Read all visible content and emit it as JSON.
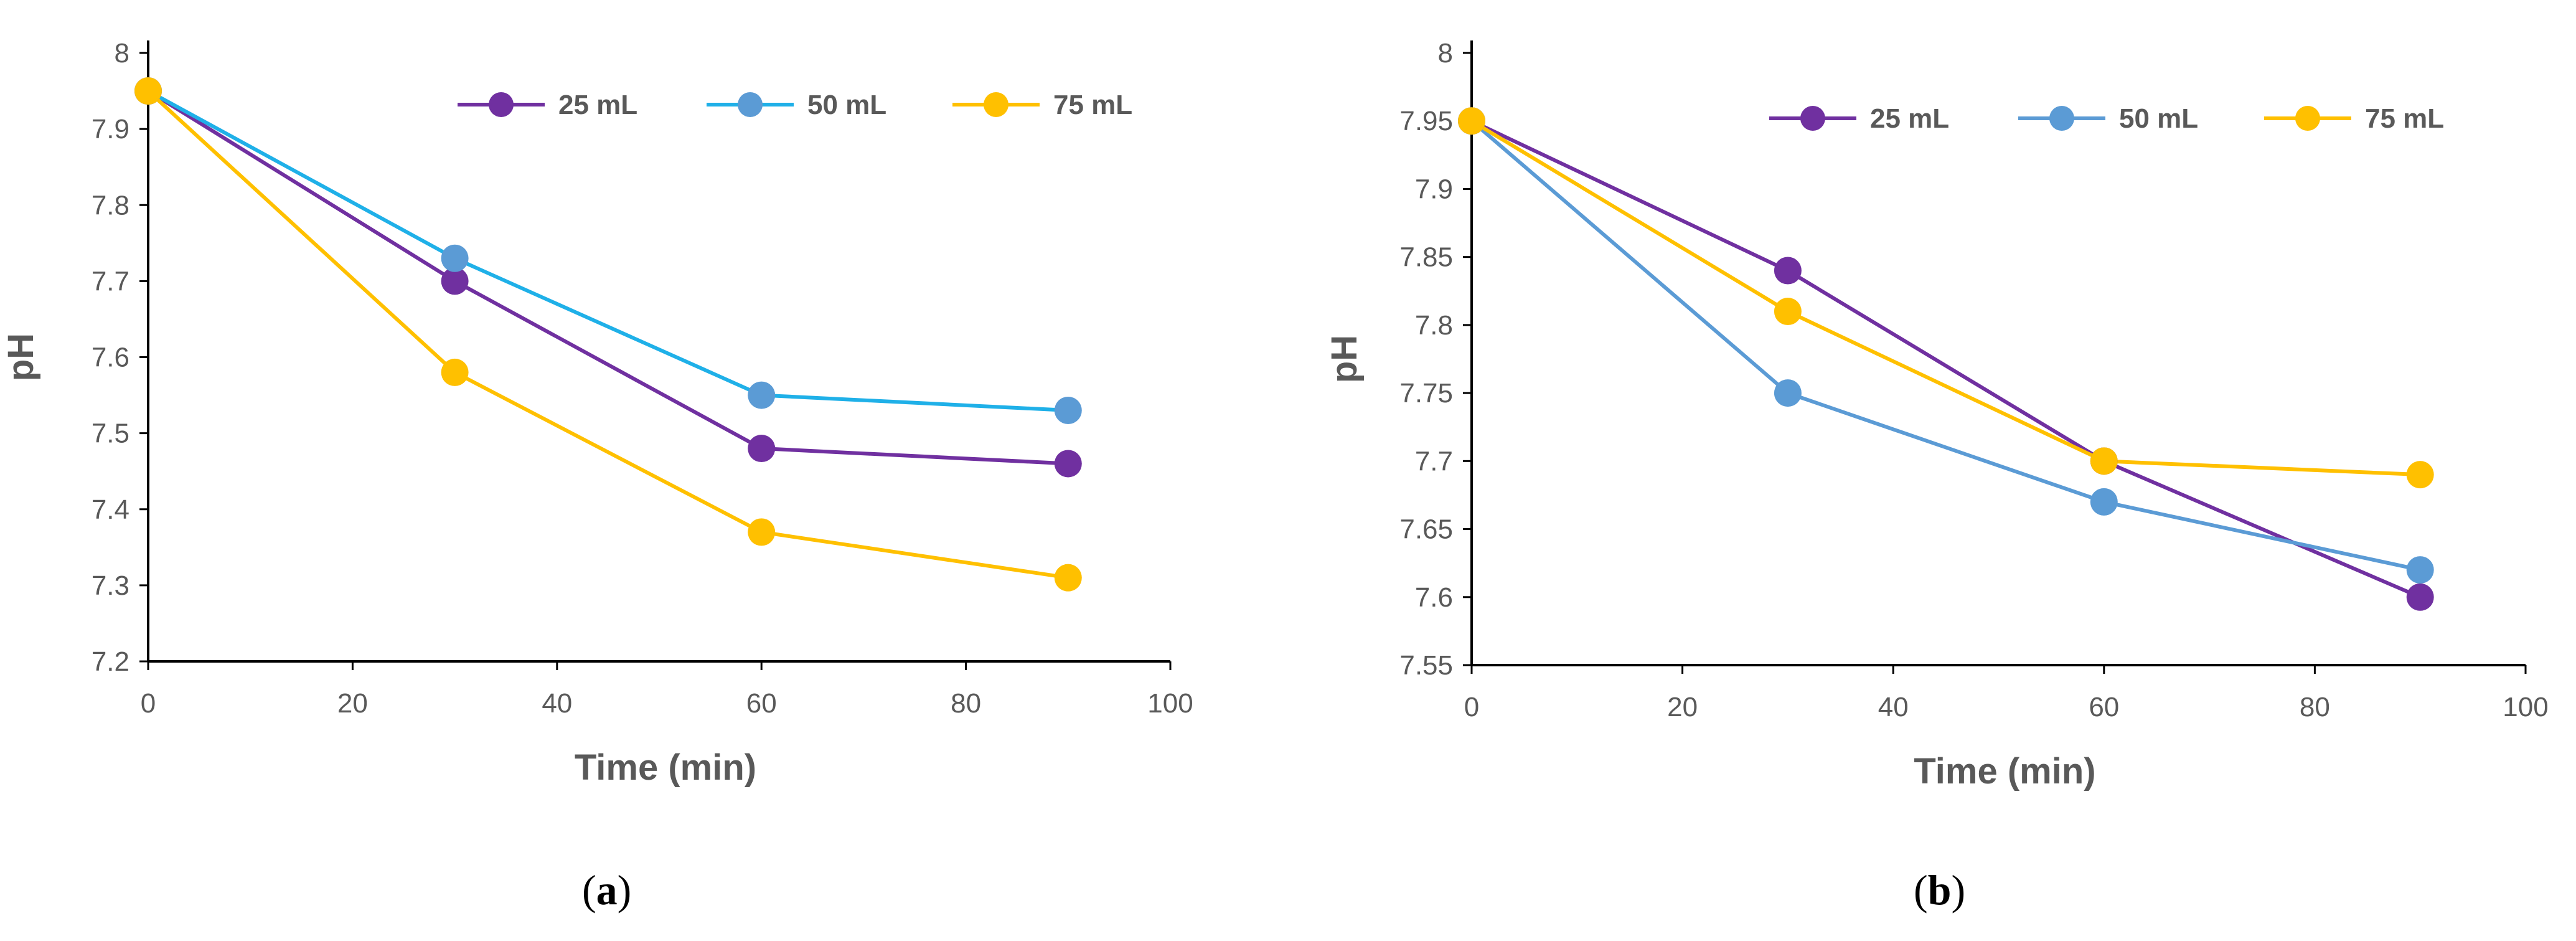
{
  "chart_data": [
    {
      "id": "a",
      "type": "line",
      "caption_open": "(",
      "caption_letter": "a",
      "caption_close": ")",
      "xlabel": "Time (min)",
      "ylabel": "pH",
      "xlim": [
        0,
        100
      ],
      "ylim": [
        7.2,
        8
      ],
      "xticks": [
        "0",
        "20",
        "40",
        "60",
        "80",
        "100"
      ],
      "yticks": [
        "7.2",
        "7.3",
        "7.4",
        "7.5",
        "7.6",
        "7.7",
        "7.8",
        "7.9",
        "8"
      ],
      "legend_position": "top-right",
      "x": [
        0,
        30,
        60,
        90
      ],
      "series": [
        {
          "name": "25 mL",
          "values": [
            7.95,
            7.7,
            7.48,
            7.46
          ],
          "line_color": "#7030A0",
          "marker_color": "#7030A0"
        },
        {
          "name": "50 mL",
          "values": [
            7.95,
            7.73,
            7.55,
            7.53
          ],
          "line_color": "#1FB0E8",
          "marker_color": "#5B9BD5"
        },
        {
          "name": "75 mL",
          "values": [
            7.95,
            7.58,
            7.37,
            7.31
          ],
          "line_color": "#FFC000",
          "marker_color": "#FFC000"
        }
      ]
    },
    {
      "id": "b",
      "type": "line",
      "caption_open": "(",
      "caption_letter": "b",
      "caption_close": ")",
      "xlabel": "Time (min)",
      "ylabel": "pH",
      "xlim": [
        0,
        100
      ],
      "ylim": [
        7.55,
        8
      ],
      "xticks": [
        "0",
        "20",
        "40",
        "60",
        "80",
        "100"
      ],
      "yticks": [
        "7.55",
        "7.6",
        "7.65",
        "7.7",
        "7.75",
        "7.8",
        "7.85",
        "7.9",
        "7.95",
        "8"
      ],
      "legend_position": "top-right",
      "x": [
        0,
        30,
        60,
        90
      ],
      "series": [
        {
          "name": "25 mL",
          "values": [
            7.95,
            7.84,
            7.7,
            7.6
          ],
          "line_color": "#7030A0",
          "marker_color": "#7030A0"
        },
        {
          "name": "50 mL",
          "values": [
            7.95,
            7.75,
            7.67,
            7.62
          ],
          "line_color": "#5B9BD5",
          "marker_color": "#5B9BD5"
        },
        {
          "name": "75 mL",
          "values": [
            7.95,
            7.81,
            7.7,
            7.69
          ],
          "line_color": "#FFC000",
          "marker_color": "#FFC000"
        }
      ]
    }
  ]
}
